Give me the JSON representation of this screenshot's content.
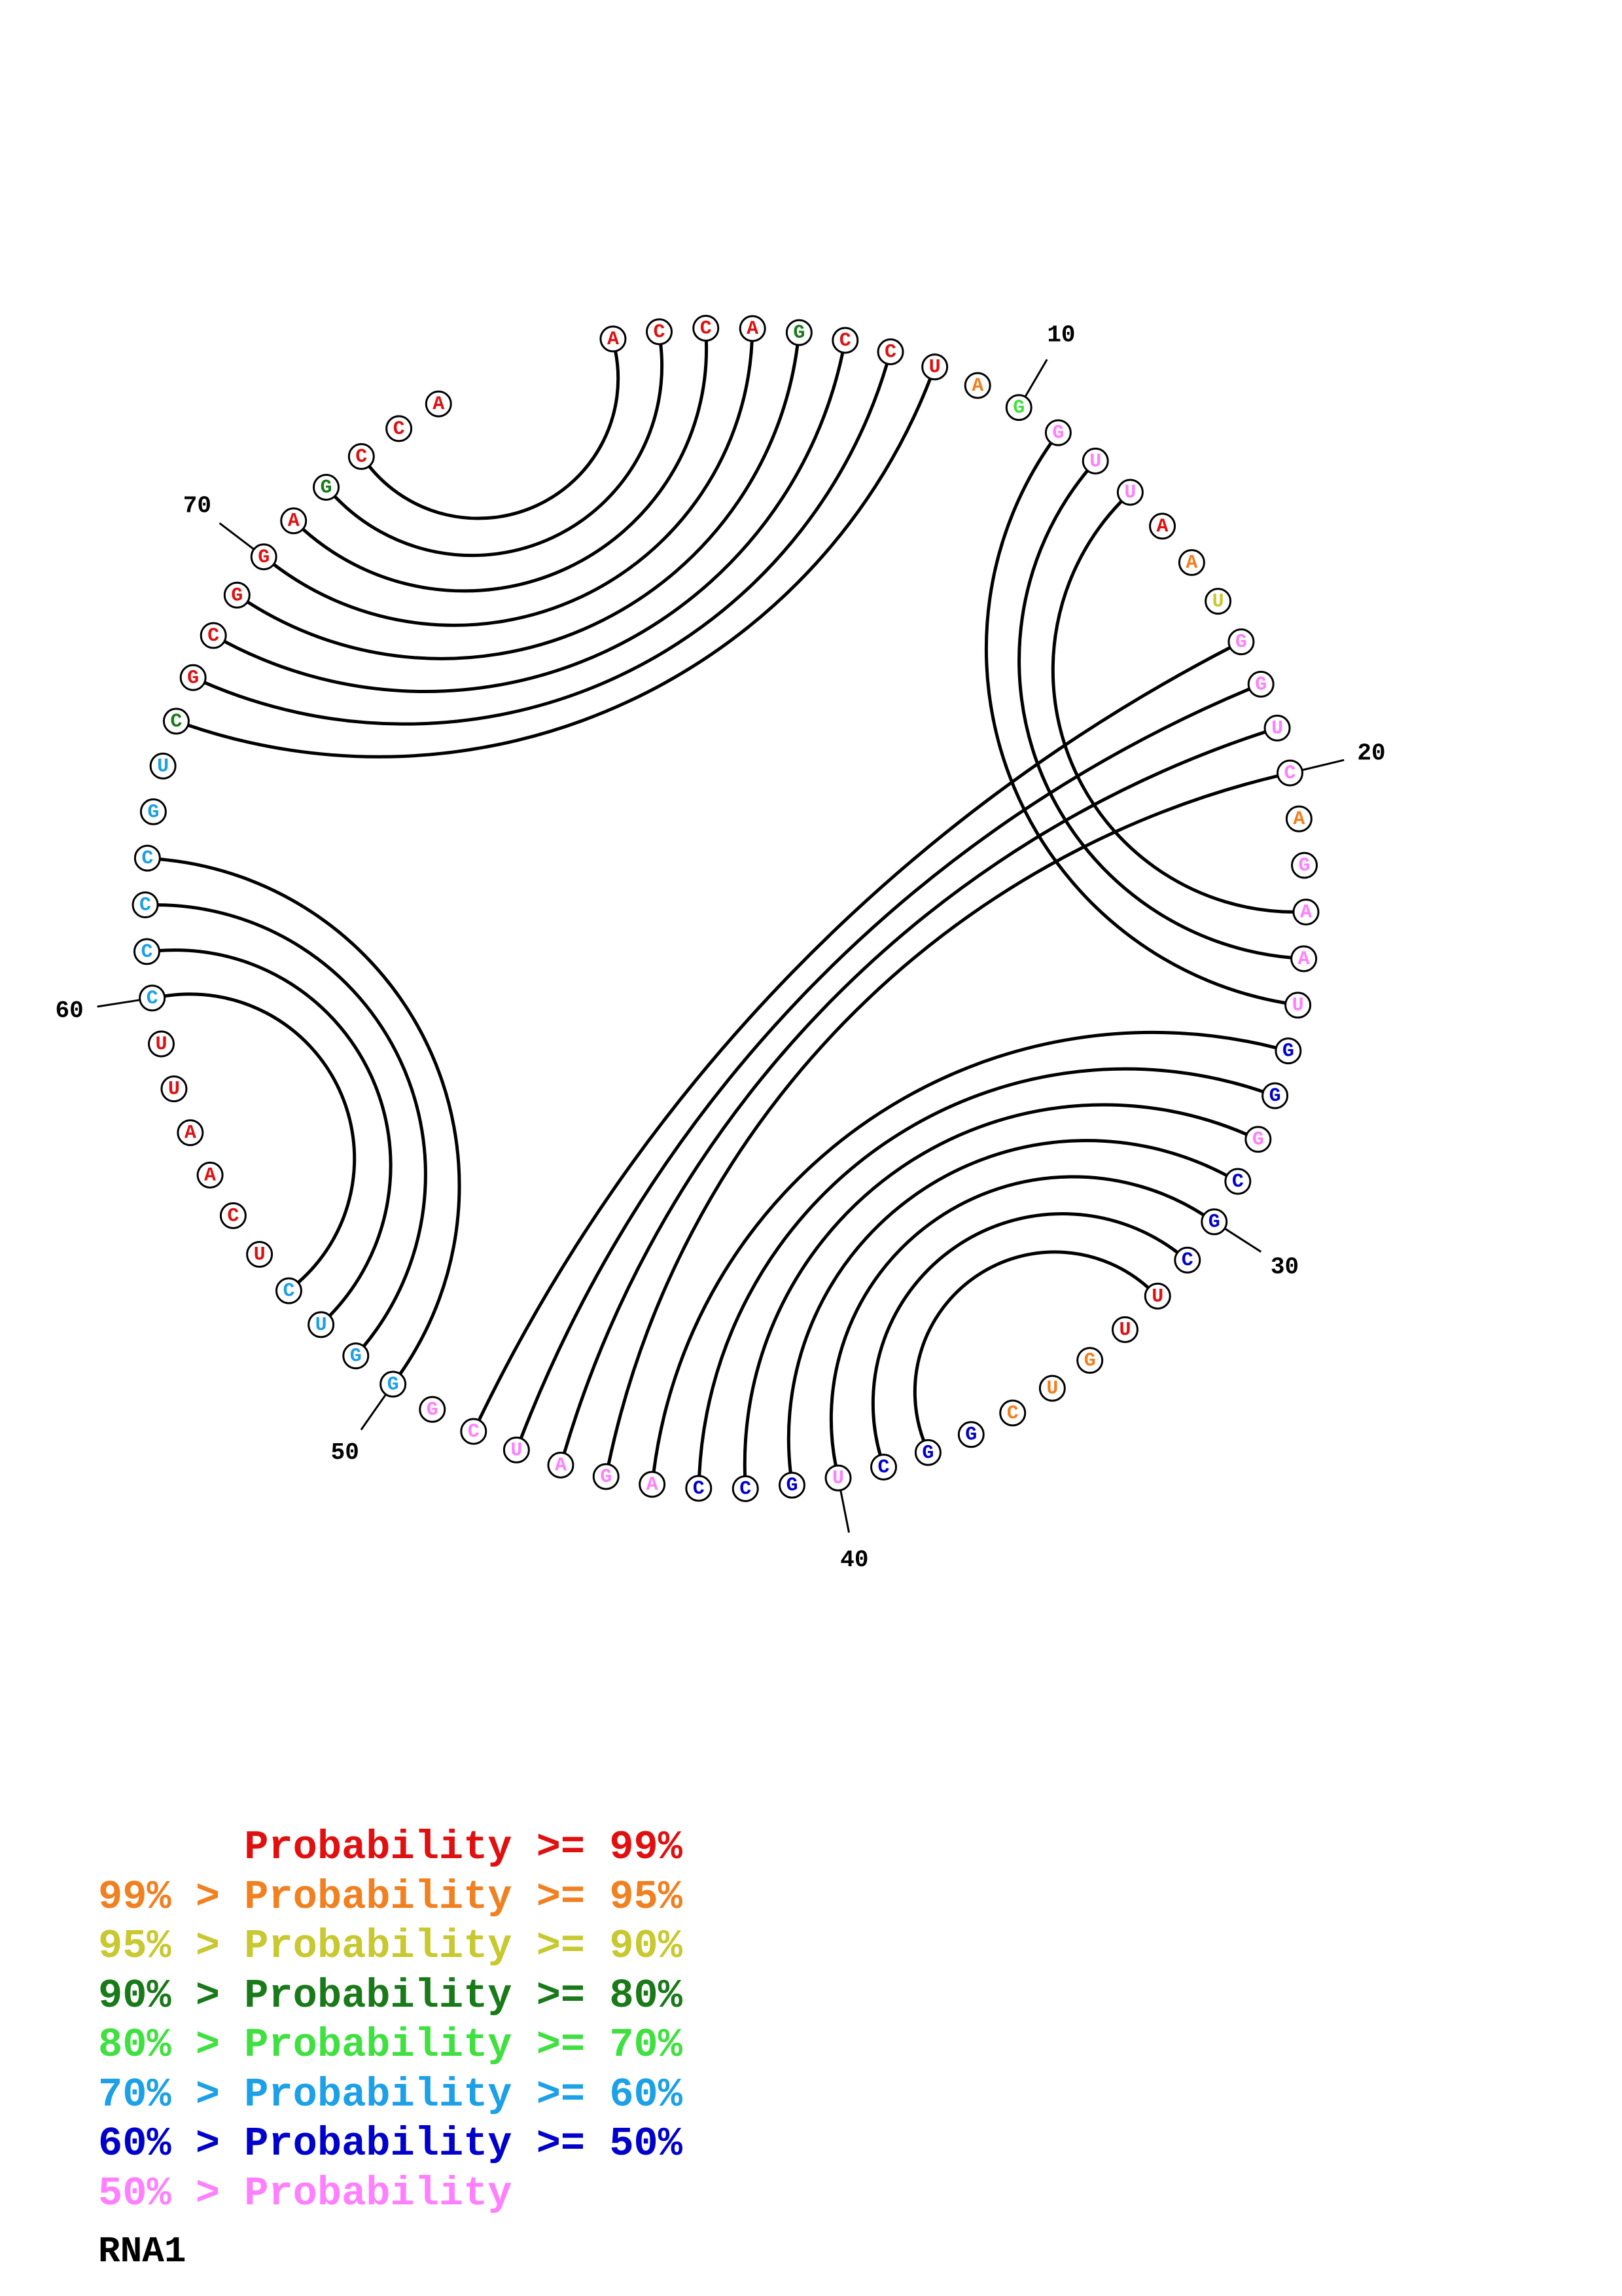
{
  "sequence": [
    "A",
    "C",
    "C",
    "A",
    "G",
    "C",
    "C",
    "U",
    "A",
    "G",
    "G",
    "U",
    "U",
    "A",
    "A",
    "U",
    "G",
    "G",
    "U",
    "C",
    "A",
    "G",
    "A",
    "A",
    "U",
    "G",
    "G",
    "G",
    "C",
    "G",
    "C",
    "U",
    "U",
    "G",
    "U",
    "C",
    "G",
    "G",
    "C",
    "U",
    "G",
    "C",
    "C",
    "A",
    "G",
    "A",
    "U",
    "C",
    "G",
    "G",
    "G",
    "U",
    "C",
    "U",
    "C",
    "A",
    "A",
    "U",
    "U",
    "C",
    "C",
    "C",
    "C",
    "G",
    "U",
    "C",
    "G",
    "C",
    "G",
    "G",
    "A",
    "G",
    "C",
    "C",
    "A"
  ],
  "nucleotide_colors": [
    "#e01010",
    "#e01010",
    "#e01010",
    "#e01010",
    "#1a7a1a",
    "#e01010",
    "#e01010",
    "#e01010",
    "#f08020",
    "#40e040",
    "#ff80ff",
    "#ff80ff",
    "#ff80ff",
    "#e01010",
    "#f08020",
    "#c8c830",
    "#ff80ff",
    "#ff80ff",
    "#ff80ff",
    "#ff80ff",
    "#f08020",
    "#ff80ff",
    "#ff80ff",
    "#ff80ff",
    "#ff80ff",
    "#0000cc",
    "#0000cc",
    "#ff80ff",
    "#0000cc",
    "#0000cc",
    "#0000cc",
    "#e01010",
    "#e01010",
    "#f08020",
    "#f08020",
    "#f08020",
    "#0000cc",
    "#0000cc",
    "#0000cc",
    "#ff80ff",
    "#0000cc",
    "#0000cc",
    "#0000cc",
    "#ff80ff",
    "#ff80ff",
    "#ff80ff",
    "#ff80ff",
    "#ff80ff",
    "#ff80ff",
    "#1ca0e8",
    "#1ca0e8",
    "#1ca0e8",
    "#1ca0e8",
    "#e01010",
    "#e01010",
    "#e01010",
    "#e01010",
    "#e01010",
    "#e01010",
    "#1ca0e8",
    "#1ca0e8",
    "#1ca0e8",
    "#1ca0e8",
    "#1ca0e8",
    "#1ca0e8",
    "#1a7a1a",
    "#e01010",
    "#e01010",
    "#e01010",
    "#e01010",
    "#e01010",
    "#1a7a1a",
    "#e01010",
    "#e01010",
    "#e01010"
  ],
  "base_pairs": [
    [
      8,
      66
    ],
    [
      7,
      67
    ],
    [
      6,
      68
    ],
    [
      5,
      69
    ],
    [
      4,
      70
    ],
    [
      3,
      71
    ],
    [
      2,
      72
    ],
    [
      1,
      73
    ],
    [
      11,
      25
    ],
    [
      12,
      24
    ],
    [
      13,
      23
    ],
    [
      17,
      48
    ],
    [
      18,
      47
    ],
    [
      19,
      46
    ],
    [
      20,
      45
    ],
    [
      26,
      44
    ],
    [
      27,
      43
    ],
    [
      28,
      42
    ],
    [
      29,
      41
    ],
    [
      30,
      40
    ],
    [
      31,
      39
    ],
    [
      32,
      38
    ],
    [
      50,
      63
    ],
    [
      51,
      62
    ],
    [
      52,
      61
    ],
    [
      53,
      60
    ]
  ],
  "position_ticks": [
    {
      "index": 10,
      "label": "10"
    },
    {
      "index": 20,
      "label": "20"
    },
    {
      "index": 30,
      "label": "30"
    },
    {
      "index": 40,
      "label": "40"
    },
    {
      "index": 50,
      "label": "50"
    },
    {
      "index": 60,
      "label": "60"
    },
    {
      "index": 70,
      "label": "70"
    }
  ],
  "legend": [
    {
      "prefix": "",
      "range": "Probability >= 99%",
      "color": "#e01010"
    },
    {
      "prefix": "99% > ",
      "range": "Probability >= 95%",
      "color": "#f08020"
    },
    {
      "prefix": "95% > ",
      "range": "Probability >= 90%",
      "color": "#c8c830"
    },
    {
      "prefix": "90% > ",
      "range": "Probability >= 80%",
      "color": "#1a7a1a"
    },
    {
      "prefix": "80% > ",
      "range": "Probability >= 70%",
      "color": "#40e040"
    },
    {
      "prefix": "70% > ",
      "range": "Probability >= 60%",
      "color": "#1ca0e8"
    },
    {
      "prefix": "60% > ",
      "range": "Probability >= 50%",
      "color": "#0000cc"
    },
    {
      "prefix": "50% > ",
      "range": "Probability",
      "color": "#ff80ff"
    }
  ],
  "caption": "RNA1"
}
